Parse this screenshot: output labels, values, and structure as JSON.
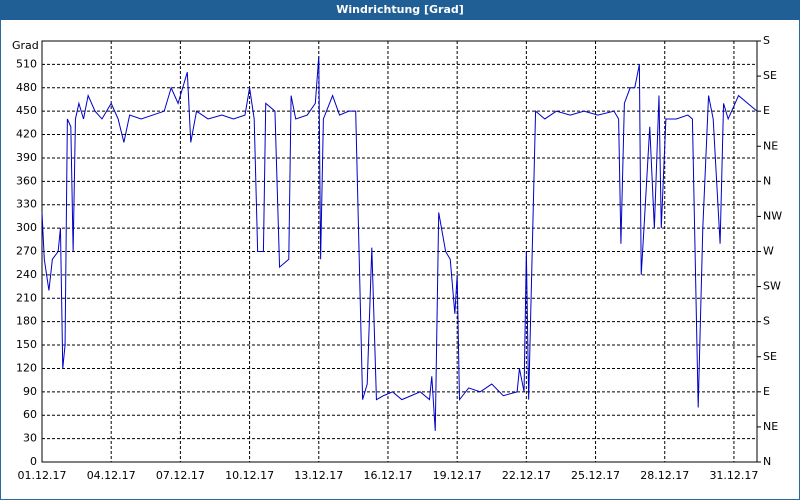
{
  "chart_data": {
    "type": "line",
    "title": "Windrichtung [Grad]",
    "y_label": "Grad",
    "x": [
      0,
      0.1,
      0.2,
      0.3,
      0.45,
      0.7,
      0.8,
      0.9,
      1.0,
      1.1,
      1.25,
      1.35,
      1.45,
      1.6,
      1.8,
      2.0,
      2.3,
      2.6,
      3.0,
      3.3,
      3.55,
      3.8,
      4.3,
      4.8,
      5.3,
      5.6,
      5.9,
      6.1,
      6.3,
      6.45,
      6.7,
      7.2,
      7.8,
      8.3,
      8.8,
      9.0,
      9.2,
      9.35,
      9.6,
      9.7,
      10.1,
      10.3,
      10.7,
      10.8,
      11.0,
      11.5,
      11.85,
      12.0,
      12.08,
      12.2,
      12.6,
      12.9,
      13.3,
      13.6,
      13.9,
      14.1,
      14.3,
      14.5,
      14.8,
      15.2,
      15.6,
      16.0,
      16.4,
      16.8,
      16.9,
      17.05,
      17.2,
      17.5,
      17.7,
      17.9,
      18.0,
      18.1,
      18.5,
      19.0,
      19.5,
      20.0,
      20.6,
      20.7,
      20.9,
      21.0,
      21.1,
      21.4,
      21.8,
      22.3,
      22.9,
      23.5,
      24.1,
      24.8,
      25.0,
      25.1,
      25.25,
      25.5,
      25.7,
      25.9,
      25.98,
      26.1,
      26.35,
      26.55,
      26.75,
      26.85,
      27.05,
      27.5,
      28.0,
      28.2,
      28.45,
      28.65,
      28.9,
      29.1,
      29.4,
      29.55,
      29.75,
      30.2,
      30.6,
      31.0
    ],
    "series": [
      {
        "color": "#0000c8",
        "values": [
          320,
          260,
          240,
          220,
          260,
          270,
          300,
          120,
          150,
          440,
          430,
          270,
          440,
          460,
          440,
          470,
          450,
          440,
          460,
          440,
          410,
          445,
          440,
          445,
          450,
          480,
          460,
          480,
          500,
          410,
          450,
          440,
          445,
          440,
          445,
          480,
          440,
          270,
          270,
          460,
          450,
          250,
          260,
          470,
          440,
          445,
          460,
          520,
          260,
          440,
          470,
          445,
          450,
          450,
          80,
          100,
          275,
          80,
          85,
          90,
          80,
          85,
          90,
          80,
          110,
          40,
          320,
          270,
          260,
          190,
          240,
          80,
          95,
          90,
          100,
          85,
          90,
          120,
          90,
          270,
          80,
          450,
          440,
          450,
          445,
          450,
          445,
          450,
          440,
          280,
          460,
          480,
          480,
          510,
          240,
          300,
          430,
          300,
          470,
          300,
          440,
          440,
          445,
          440,
          70,
          300,
          470,
          440,
          280,
          460,
          440,
          470,
          460,
          450
        ]
      }
    ],
    "xlim": [
      0,
      31
    ],
    "xticks": [
      {
        "value": 0,
        "label": "01.12.17"
      },
      {
        "value": 3,
        "label": "04.12.17"
      },
      {
        "value": 6,
        "label": "07.12.17"
      },
      {
        "value": 9,
        "label": "10.12.17"
      },
      {
        "value": 12,
        "label": "13.12.17"
      },
      {
        "value": 15,
        "label": "16.12.17"
      },
      {
        "value": 18,
        "label": "19.12.17"
      },
      {
        "value": 21,
        "label": "22.12.17"
      },
      {
        "value": 24,
        "label": "25.12.17"
      },
      {
        "value": 27,
        "label": "28.12.17"
      },
      {
        "value": 30,
        "label": "31.12.17"
      }
    ],
    "ylim": [
      0,
      540
    ],
    "yticks": [
      0,
      30,
      60,
      90,
      120,
      150,
      180,
      210,
      240,
      270,
      300,
      330,
      360,
      390,
      420,
      450,
      480,
      510
    ],
    "y2lim": [
      0,
      540
    ],
    "y2ticks": [
      {
        "value": 0,
        "label": "N"
      },
      {
        "value": 45,
        "label": "NE"
      },
      {
        "value": 90,
        "label": "E"
      },
      {
        "value": 135,
        "label": "SE"
      },
      {
        "value": 180,
        "label": "S"
      },
      {
        "value": 225,
        "label": "SW"
      },
      {
        "value": 270,
        "label": "W"
      },
      {
        "value": 315,
        "label": "NW"
      },
      {
        "value": 360,
        "label": "N"
      },
      {
        "value": 405,
        "label": "NE"
      },
      {
        "value": 450,
        "label": "E"
      },
      {
        "value": 495,
        "label": "SE"
      },
      {
        "value": 540,
        "label": "S"
      }
    ],
    "grid": true
  }
}
